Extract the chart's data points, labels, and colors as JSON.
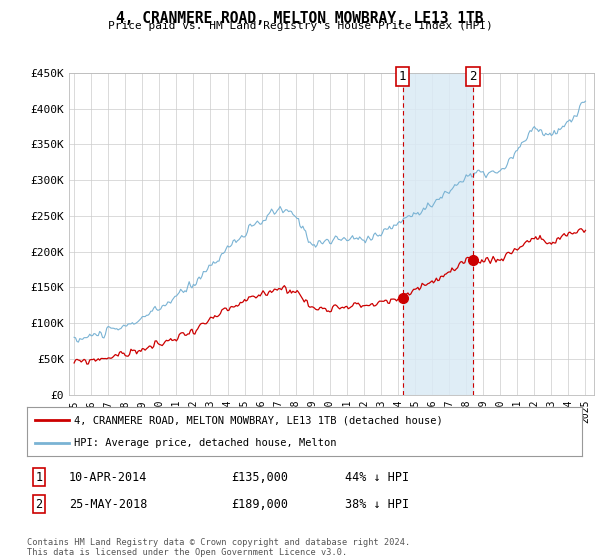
{
  "title": "4, CRANMERE ROAD, MELTON MOWBRAY, LE13 1TB",
  "subtitle": "Price paid vs. HM Land Registry's House Price Index (HPI)",
  "hpi_color": "#7ab3d4",
  "price_color": "#cc0000",
  "annotation_color": "#cc0000",
  "shading_color": "#daeaf5",
  "ylim": [
    0,
    450000
  ],
  "yticks": [
    0,
    50000,
    100000,
    150000,
    200000,
    250000,
    300000,
    350000,
    400000,
    450000
  ],
  "ytick_labels": [
    "£0",
    "£50K",
    "£100K",
    "£150K",
    "£200K",
    "£250K",
    "£300K",
    "£350K",
    "£400K",
    "£450K"
  ],
  "xlim_start": 1994.7,
  "xlim_end": 2025.5,
  "xtick_years": [
    1995,
    1996,
    1997,
    1998,
    1999,
    2000,
    2001,
    2002,
    2003,
    2004,
    2005,
    2006,
    2007,
    2008,
    2009,
    2010,
    2011,
    2012,
    2013,
    2014,
    2015,
    2016,
    2017,
    2018,
    2019,
    2020,
    2021,
    2022,
    2023,
    2024,
    2025
  ],
  "transaction1_date": 2014.27,
  "transaction1_price": 135000,
  "transaction1_label": "1",
  "transaction2_date": 2018.4,
  "transaction2_price": 189000,
  "transaction2_label": "2",
  "legend_line1": "4, CRANMERE ROAD, MELTON MOWBRAY, LE13 1TB (detached house)",
  "legend_line2": "HPI: Average price, detached house, Melton",
  "table_row1": [
    "1",
    "10-APR-2014",
    "£135,000",
    "44% ↓ HPI"
  ],
  "table_row2": [
    "2",
    "25-MAY-2018",
    "£189,000",
    "38% ↓ HPI"
  ],
  "footer": "Contains HM Land Registry data © Crown copyright and database right 2024.\nThis data is licensed under the Open Government Licence v3.0.",
  "background_color": "#ffffff",
  "grid_color": "#cccccc",
  "hpi_seed": 10,
  "price_seed": 99
}
